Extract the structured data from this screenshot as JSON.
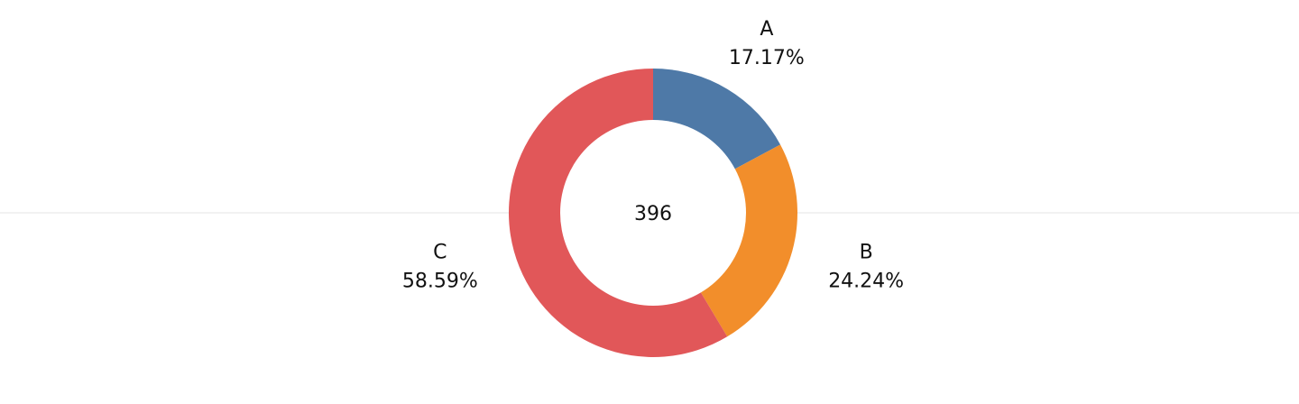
{
  "chart_data": {
    "type": "pie",
    "style": "donut",
    "center_label": "396",
    "categories": [
      "A",
      "B",
      "C"
    ],
    "values": [
      68,
      96,
      232
    ],
    "percent_labels": [
      "17.17%",
      "24.24%",
      "58.59%"
    ],
    "colors": [
      "#4e79a7",
      "#f28e2b",
      "#e15759"
    ],
    "divider_color": "#e6e6e6"
  }
}
